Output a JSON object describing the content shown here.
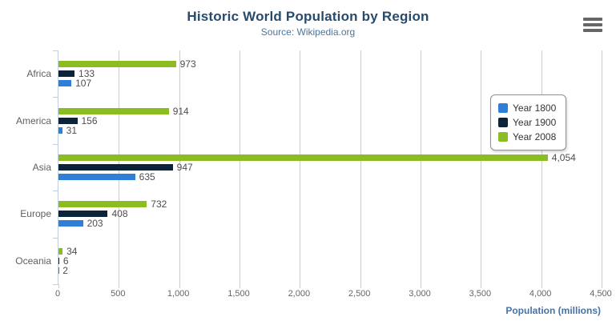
{
  "header": {
    "title": "Historic World Population by Region",
    "subtitle": "Source: Wikipedia.org",
    "menu_icon": "hamburger-icon"
  },
  "colors": {
    "title": "#274b6d",
    "subtitle": "#4d759e",
    "axis_title": "#4572a7",
    "axis_line": "#c0d0e0",
    "gridline": "#cccccc",
    "labels": "#666666",
    "series_year_1800": "#2f7ed8",
    "series_year_1900": "#0d233a",
    "series_year_2008": "#8bbc21"
  },
  "chart_data": {
    "type": "bar",
    "orientation": "horizontal",
    "title": "Historic World Population by Region",
    "subtitle": "Source: Wikipedia.org",
    "categories": [
      "Africa",
      "America",
      "Asia",
      "Europe",
      "Oceania"
    ],
    "series": [
      {
        "name": "Year 1800",
        "color": "#2f7ed8",
        "values": [
          107,
          31,
          635,
          203,
          2
        ],
        "labels": [
          "107",
          "31",
          "635",
          "203",
          "2"
        ]
      },
      {
        "name": "Year 1900",
        "color": "#0d233a",
        "values": [
          133,
          156,
          947,
          408,
          6
        ],
        "labels": [
          "133",
          "156",
          "947",
          "408",
          "6"
        ]
      },
      {
        "name": "Year 2008",
        "color": "#8bbc21",
        "values": [
          973,
          914,
          4054,
          732,
          34
        ],
        "labels": [
          "973",
          "914",
          "4,054",
          "732",
          "34"
        ]
      }
    ],
    "xlabel": "Population (millions)",
    "ylabel": "",
    "xlim": [
      0,
      4500
    ],
    "xticks": [
      {
        "v": 0,
        "label": "0"
      },
      {
        "v": 500,
        "label": "500"
      },
      {
        "v": 1000,
        "label": "1,000"
      },
      {
        "v": 1500,
        "label": "1,500"
      },
      {
        "v": 2000,
        "label": "2,000"
      },
      {
        "v": 2500,
        "label": "2,500"
      },
      {
        "v": 3000,
        "label": "3,000"
      },
      {
        "v": 3500,
        "label": "3,500"
      },
      {
        "v": 4000,
        "label": "4,000"
      },
      {
        "v": 4500,
        "label": "4,500"
      }
    ],
    "grid": true,
    "legend_position": "right",
    "bar_render_order_top_to_bottom": [
      "Year 2008",
      "Year 1900",
      "Year 1800"
    ]
  }
}
